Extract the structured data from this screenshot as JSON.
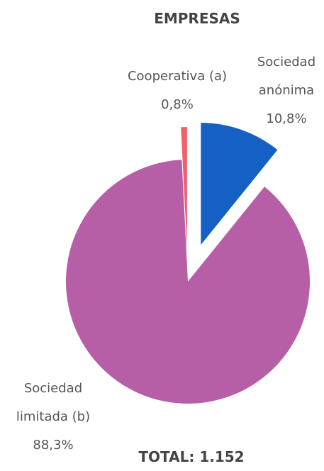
{
  "chart_data": {
    "type": "pie",
    "title": "EMPRESAS",
    "annotation": "TOTAL: 1.152",
    "categories": [
      "Sociedad anónima",
      "Sociedad limitada (b)",
      "Cooperativa (a)"
    ],
    "values": [
      10.8,
      88.3,
      0.8
    ],
    "value_labels": [
      "10,8%",
      "88,3%",
      "0,8%"
    ],
    "colors": [
      "#1560c4",
      "#b65ea6",
      "#f0606c"
    ]
  }
}
